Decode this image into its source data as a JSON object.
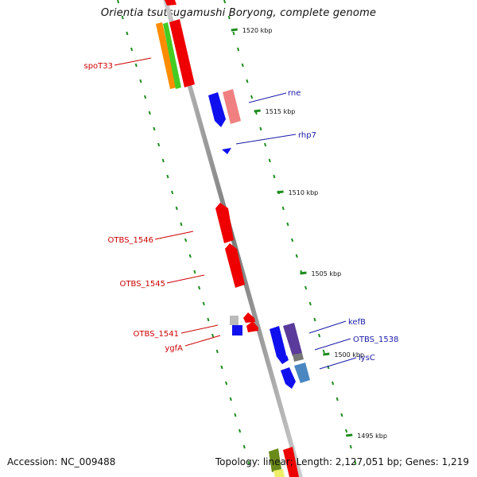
{
  "title": "Orientia tsutsugamushi Boryong, complete genome",
  "footer": {
    "accession": "Accession: NC_009488",
    "summary": "Topology: linear; Length: 2,127,051 bp; Genes: 1,219"
  },
  "scale": {
    "ticks": [
      {
        "label": "1520 kbp",
        "kbp": 1520
      },
      {
        "label": "1515 kbp",
        "kbp": 1515
      },
      {
        "label": "1510 kbp",
        "kbp": 1510
      },
      {
        "label": "1505 kbp",
        "kbp": 1505
      },
      {
        "label": "1500 kbp",
        "kbp": 1500
      },
      {
        "label": "1495 kbp",
        "kbp": 1495
      }
    ]
  },
  "genes": {
    "forward": [
      {
        "label": "rne",
        "color": "#1a1aa8"
      },
      {
        "label": "rhp7",
        "color": "#1a1aa8"
      },
      {
        "label": "kefB",
        "color": "#1a1aa8"
      },
      {
        "label": "OTBS_1538",
        "color": "#1a1aa8"
      },
      {
        "label": "lysC",
        "color": "#1a1aa8"
      }
    ],
    "reverse": [
      {
        "label": "spoT33",
        "color": "#cc0000"
      },
      {
        "label": "OTBS_1546",
        "color": "#cc0000"
      },
      {
        "label": "OTBS_1545",
        "color": "#cc0000"
      },
      {
        "label": "OTBS_1541",
        "color": "#cc0000"
      },
      {
        "label": "ygfA",
        "color": "#cc0000"
      }
    ]
  },
  "colors": {
    "backbone": "#888888",
    "dotted_ring": "#1e8c1e",
    "gene_red": "#ee0000",
    "gene_blue": "#1010ee",
    "gene_pink": "#f08080",
    "gene_purple": "#5a3a9a",
    "gene_steel": "#4a86c0",
    "gene_orange": "#ff8c00",
    "gene_green": "#44cc22",
    "gene_gray": "#bbbbbb"
  }
}
